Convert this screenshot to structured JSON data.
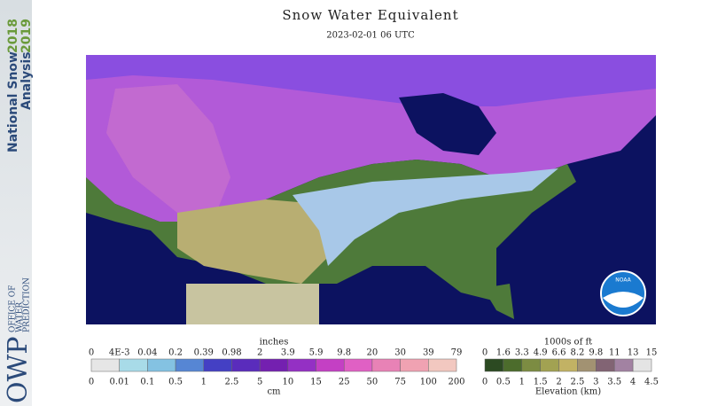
{
  "sidebar": {
    "line1": "National Snow",
    "line2": "Analysis",
    "year1": "2018",
    "year2": "2019",
    "logo": "OWP",
    "office": [
      "OFFICE OF",
      "WATER",
      "PREDICTION"
    ]
  },
  "header": {
    "title": "Snow Water Equivalent",
    "subtitle": "2023-02-01 06 UTC"
  },
  "map": {
    "logo": "NOAA"
  },
  "swe_legend": {
    "top_unit": "inches",
    "bottom_unit": "cm",
    "top_labels": [
      "0",
      "4E-3",
      "0.04",
      "0.2",
      "0.39",
      "0.98",
      "2",
      "3.9",
      "5.9",
      "9.8",
      "20",
      "30",
      "39",
      "79"
    ],
    "bottom_labels": [
      "0",
      "0.01",
      "0.1",
      "0.5",
      "1",
      "2.5",
      "5",
      "10",
      "15",
      "25",
      "50",
      "75",
      "100",
      "200"
    ],
    "swatches": [
      "#e6e6e6",
      "#a8dbe8",
      "#84c2e2",
      "#5686d4",
      "#4440c4",
      "#5a2cbc",
      "#7420b0",
      "#9430c4",
      "#c440c4",
      "#e060c4",
      "#e882b6",
      "#f0a2b2",
      "#f2c8c0"
    ]
  },
  "elev_legend": {
    "top_unit": "1000s of ft",
    "bottom_unit": "Elevation (km)",
    "top_labels": [
      "0",
      "1.6",
      "3.3",
      "4.9",
      "6.6",
      "8.2",
      "9.8",
      "11",
      "13",
      "15"
    ],
    "bottom_labels": [
      "0",
      "0.5",
      "1",
      "1.5",
      "2",
      "2.5",
      "3",
      "3.5",
      "4",
      "4.5"
    ],
    "swatches": [
      "#2c4a22",
      "#4c6c2c",
      "#7c8c42",
      "#a2a252",
      "#c2b264",
      "#a29272",
      "#826474",
      "#a282a2",
      "#e4e4e4"
    ]
  }
}
